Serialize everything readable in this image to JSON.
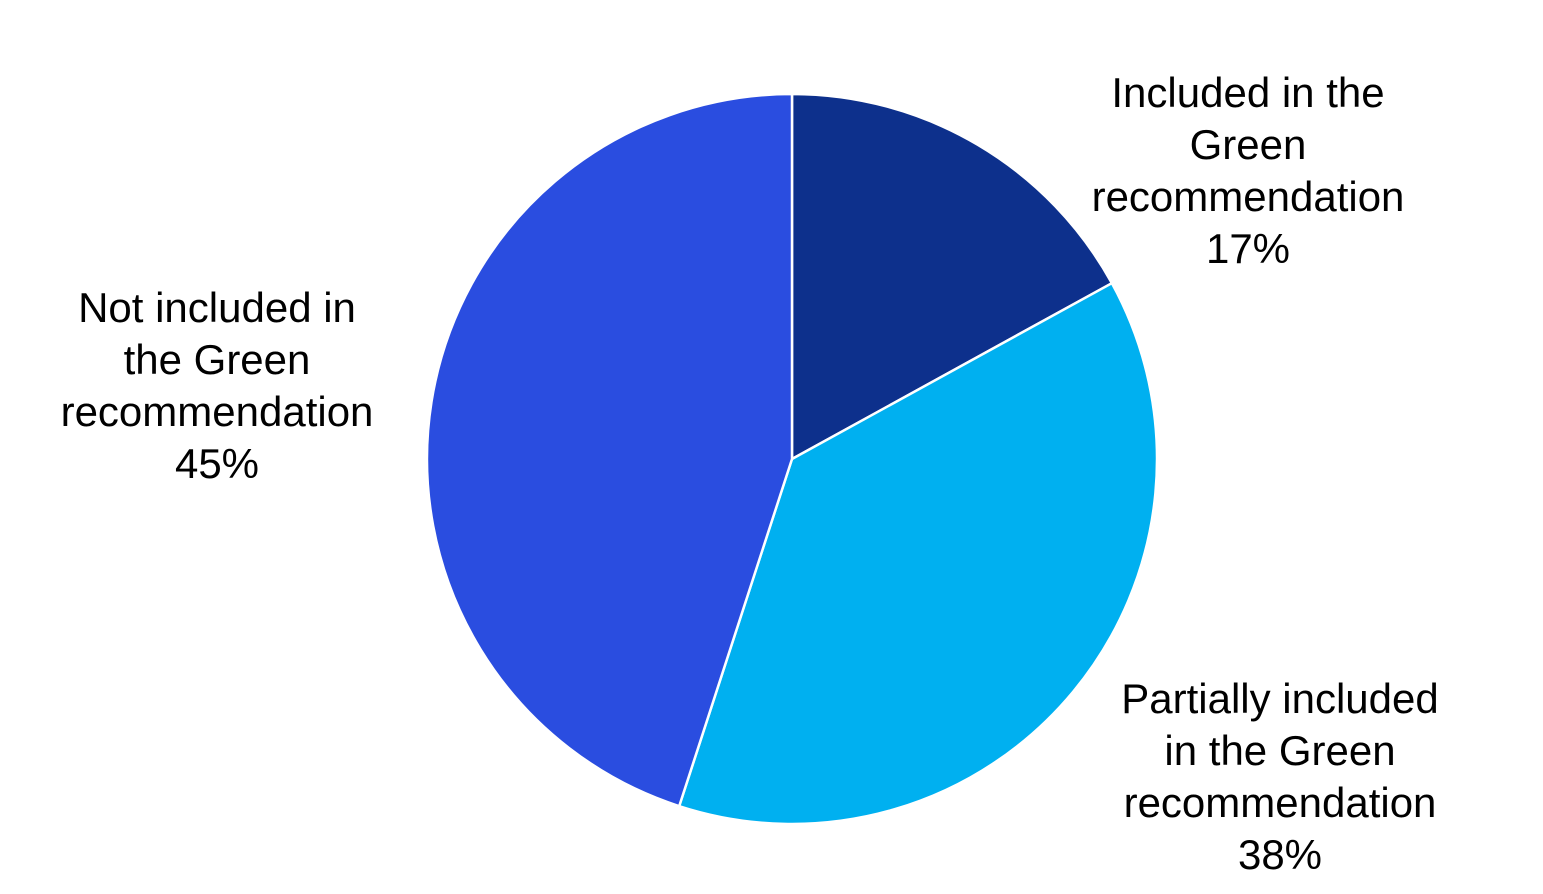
{
  "chart_data": {
    "type": "pie",
    "title": "",
    "legend": "none",
    "labels_position": "outside",
    "background": "#ffffff",
    "start_angle_deg": 0,
    "direction": "clockwise",
    "slice_border_color": "#ffffff",
    "text_color": "#000000",
    "slices": [
      {
        "key": "included",
        "label": "Included in the Green recommendation",
        "pct": 17,
        "color": "#0d308c",
        "label_lines": [
          "Included in the",
          "Green",
          "recommendation",
          "17%"
        ]
      },
      {
        "key": "partially-included",
        "label": "Partially included in the Green recommendation",
        "pct": 38,
        "color": "#00b0f0",
        "label_lines": [
          "Partially included",
          "in the Green",
          "recommendation",
          "38%"
        ]
      },
      {
        "key": "not-included",
        "label": "Not included in the Green recommendation",
        "pct": 45,
        "color": "#2a4de0",
        "label_lines": [
          "Not included in",
          "the Green",
          "recommendation",
          "45%"
        ]
      }
    ]
  }
}
